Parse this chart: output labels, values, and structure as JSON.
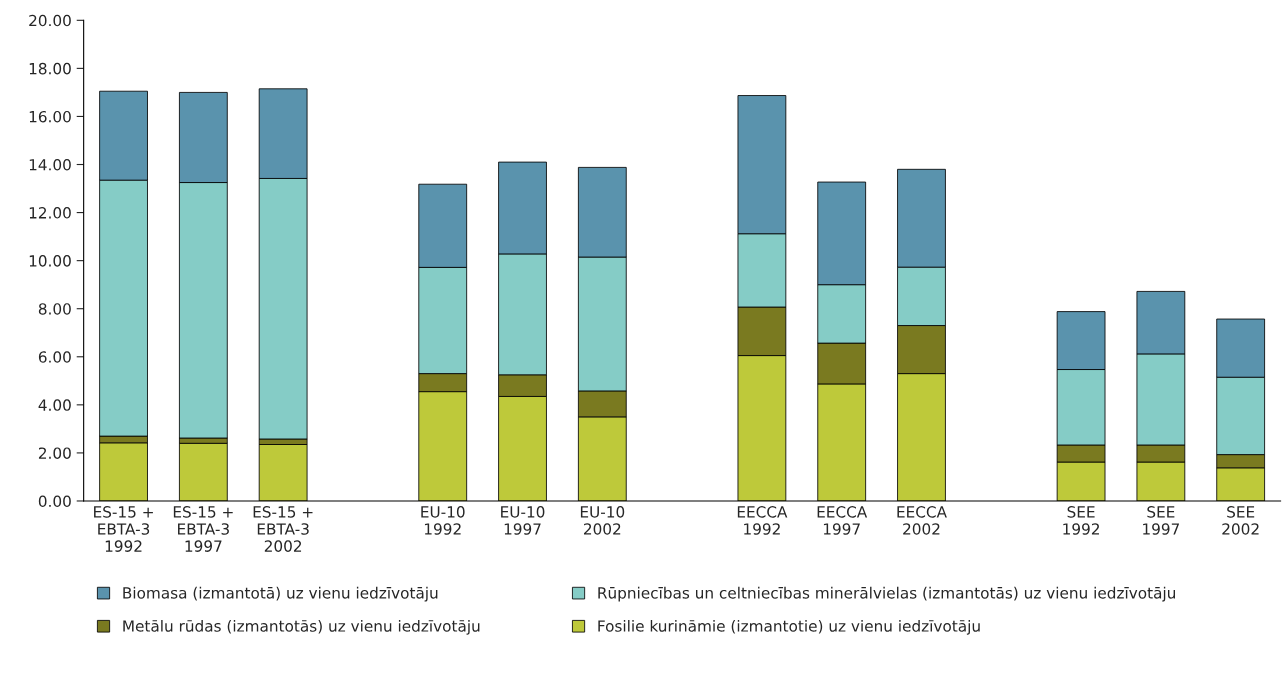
{
  "chart_data": {
    "type": "bar",
    "stacked": true,
    "categories": [
      "ES-15 +\nEBTA-3\n1992",
      "ES-15 +\nEBTA-3\n1997",
      "ES-15 +\nEBTA-3\n2002",
      null,
      "EU-10\n1992",
      "EU-10\n1997",
      "EU-10\n2002",
      null,
      "EECCA\n1992",
      "EECCA\n1997",
      "EECCA\n2002",
      null,
      "SEE\n1992",
      "SEE\n1997",
      "SEE\n2002"
    ],
    "series": [
      {
        "name": "Fosilie kurināmie (izmantotie) uz vienu iedzīvotāju",
        "color": "#bec93a",
        "values": [
          2.42,
          2.4,
          2.35,
          null,
          4.55,
          4.35,
          3.5,
          null,
          6.05,
          4.87,
          5.3,
          null,
          1.62,
          1.62,
          1.38
        ]
      },
      {
        "name": "Metālu rūdas (izmantotās) uz vienu iedzīvotāju",
        "color": "#7a7a20",
        "values": [
          0.28,
          0.22,
          0.23,
          null,
          0.75,
          0.9,
          1.08,
          null,
          2.02,
          1.7,
          2.0,
          null,
          0.71,
          0.71,
          0.55
        ]
      },
      {
        "name": "Rūpniecības un celtniecības minerālvielas (izmantotās) uz vienu iedzīvotāju",
        "color": "#85ccc6",
        "values": [
          10.65,
          10.63,
          10.84,
          null,
          4.42,
          5.03,
          5.57,
          null,
          3.05,
          2.43,
          2.43,
          null,
          3.14,
          3.79,
          3.22
        ]
      },
      {
        "name": "Biomasa (izmantotā) uz vienu iedzīvotāju",
        "color": "#5a93ad",
        "values": [
          3.7,
          3.75,
          3.73,
          null,
          3.46,
          3.82,
          3.73,
          null,
          5.75,
          4.27,
          4.07,
          null,
          2.41,
          2.6,
          2.42
        ]
      }
    ],
    "ylim": [
      0,
      20
    ],
    "yticks": [
      {
        "value": 0,
        "label": "0.00"
      },
      {
        "value": 2,
        "label": "2.00"
      },
      {
        "value": 4,
        "label": "4.00"
      },
      {
        "value": 6,
        "label": "6.00"
      },
      {
        "value": 8,
        "label": "8.00"
      },
      {
        "value": 10,
        "label": "10.00"
      },
      {
        "value": 12,
        "label": "12.00"
      },
      {
        "value": 14,
        "label": "14.00"
      },
      {
        "value": 16,
        "label": "16.00"
      },
      {
        "value": 18,
        "label": "18.00"
      },
      {
        "value": 20,
        "label": "20.00"
      }
    ],
    "grid": false,
    "legend": "bottom"
  }
}
